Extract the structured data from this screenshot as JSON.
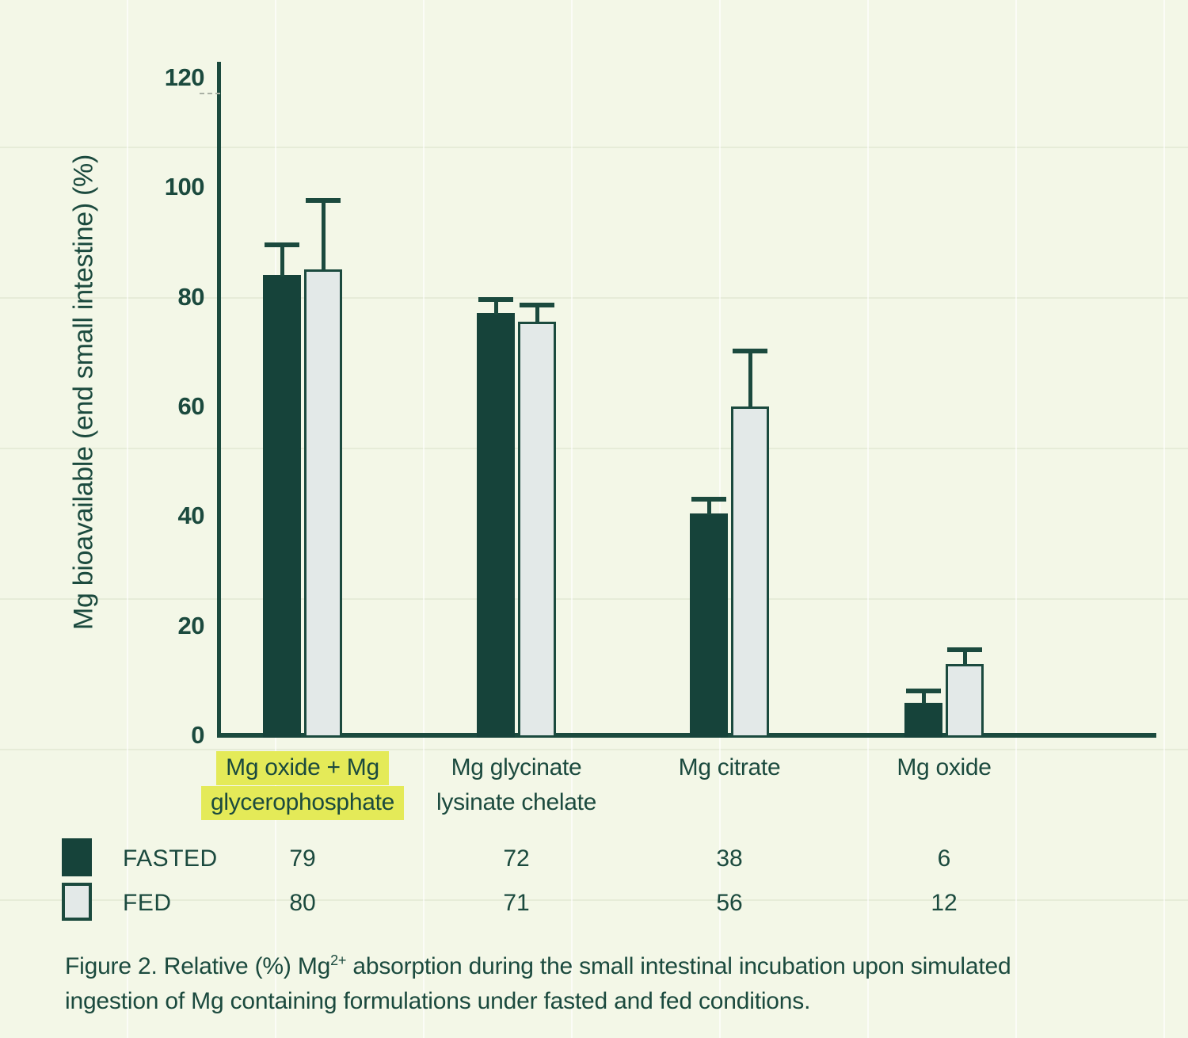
{
  "chart": {
    "y_axis_label": "Mg bioavailable (end small intestine) (%)"
  },
  "chart_data": {
    "type": "bar",
    "title": "",
    "xlabel": "",
    "ylabel": "Mg bioavailable (end small intestine) (%)",
    "ylim": [
      0,
      120
    ],
    "yticks": [
      0,
      20,
      40,
      60,
      80,
      100,
      120
    ],
    "grid": "subtle paper texture only, no plot gridlines",
    "legend_position": "bottom table",
    "categories": [
      "Mg oxide + Mg glycerophosphate",
      "Mg glycinate lysinate chelate",
      "Mg citrate",
      "Mg oxide"
    ],
    "category_label_lines": [
      [
        "Mg oxide + Mg",
        "glycerophosphate"
      ],
      [
        "Mg glycinate",
        "lysinate chelate"
      ],
      [
        "Mg citrate"
      ],
      [
        "Mg oxide"
      ]
    ],
    "highlighted_category_index": 0,
    "series": [
      {
        "name": "FASTED",
        "color": "#16433a",
        "values": [
          79,
          72,
          38,
          6
        ],
        "values_as_drawn": [
          84,
          77,
          40.5,
          6
        ],
        "error_up_as_drawn": [
          6,
          3,
          3,
          2.5
        ]
      },
      {
        "name": "FED",
        "color": "#e3e9e8",
        "values": [
          80,
          71,
          56,
          12
        ],
        "values_as_drawn": [
          85,
          75.5,
          60,
          13
        ],
        "error_up_as_drawn": [
          13,
          3.5,
          10.5,
          3
        ]
      }
    ]
  },
  "table": {
    "rows": [
      {
        "label": "FASTED",
        "swatch": "dark",
        "values": [
          "79",
          "72",
          "38",
          "6"
        ]
      },
      {
        "label": "FED",
        "swatch": "light",
        "values": [
          "80",
          "71",
          "56",
          "12"
        ]
      }
    ]
  },
  "caption": {
    "line1_prefix": "Figure 2. Relative (%) Mg",
    "line1_sup": "2+",
    "line1_rest": " absorption during the small intestinal incubation upon simulated",
    "line2": "ingestion of Mg containing formulations under fasted and fed conditions."
  },
  "colors": {
    "background": "#f3f7e7",
    "ink": "#1b4a3e",
    "bar_fasted": "#16433a",
    "bar_fed_fill": "#e3e9e8",
    "bar_fed_border": "#1b4a3e",
    "highlight_yellow": "#e4ea58"
  }
}
